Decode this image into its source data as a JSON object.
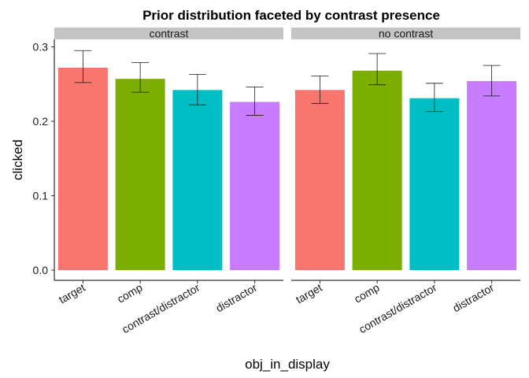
{
  "chart_data": {
    "type": "bar",
    "title": "Prior distribution faceted by contrast presence",
    "xlabel": "obj_in_display",
    "ylabel": "clicked",
    "ylim": [
      0,
      0.31
    ],
    "yticks": [
      "0.0",
      "0.1",
      "0.2",
      "0.3"
    ],
    "ytick_values": [
      0,
      0.1,
      0.2,
      0.3
    ],
    "categories": [
      "target",
      "comp",
      "contrast/distractor",
      "distractor"
    ],
    "colors": [
      "#F8766D",
      "#7CAE00",
      "#00BFC4",
      "#C77CFF"
    ],
    "legend": "none",
    "grid": false,
    "facets": [
      {
        "name": "contrast",
        "values": [
          0.272,
          0.257,
          0.242,
          0.226
        ],
        "ci_low": [
          0.252,
          0.239,
          0.222,
          0.208
        ],
        "ci_high": [
          0.295,
          0.279,
          0.263,
          0.246
        ]
      },
      {
        "name": "no contrast",
        "values": [
          0.242,
          0.268,
          0.231,
          0.254
        ],
        "ci_low": [
          0.224,
          0.249,
          0.213,
          0.234
        ],
        "ci_high": [
          0.261,
          0.291,
          0.251,
          0.275
        ]
      }
    ]
  }
}
